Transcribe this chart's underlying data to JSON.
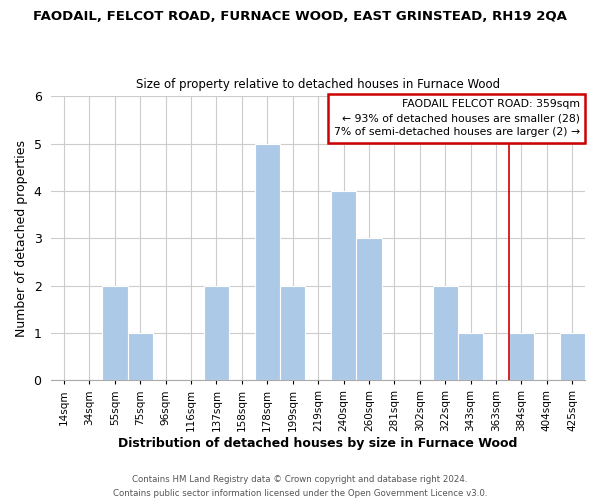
{
  "title": "FAODAIL, FELCOT ROAD, FURNACE WOOD, EAST GRINSTEAD, RH19 2QA",
  "subtitle": "Size of property relative to detached houses in Furnace Wood",
  "xlabel": "Distribution of detached houses by size in Furnace Wood",
  "ylabel": "Number of detached properties",
  "bin_labels": [
    "14sqm",
    "34sqm",
    "55sqm",
    "75sqm",
    "96sqm",
    "116sqm",
    "137sqm",
    "158sqm",
    "178sqm",
    "199sqm",
    "219sqm",
    "240sqm",
    "260sqm",
    "281sqm",
    "302sqm",
    "322sqm",
    "343sqm",
    "363sqm",
    "384sqm",
    "404sqm",
    "425sqm"
  ],
  "bar_heights": [
    0,
    0,
    2,
    1,
    0,
    0,
    2,
    0,
    5,
    2,
    0,
    4,
    3,
    0,
    0,
    2,
    1,
    0,
    1,
    0,
    1
  ],
  "bar_color": "#adc9e8",
  "bar_edge_color": "#adc9e8",
  "ylim": [
    0,
    6
  ],
  "yticks": [
    0,
    1,
    2,
    3,
    4,
    5,
    6
  ],
  "reference_line_x_label": "363sqm",
  "reference_line_color": "#cc0000",
  "legend_title": "FAODAIL FELCOT ROAD: 359sqm",
  "legend_line1": "← 93% of detached houses are smaller (28)",
  "legend_line2": "7% of semi-detached houses are larger (2) →",
  "legend_box_color": "#cc0000",
  "footer_line1": "Contains HM Land Registry data © Crown copyright and database right 2024.",
  "footer_line2": "Contains public sector information licensed under the Open Government Licence v3.0.",
  "background_color": "#ffffff",
  "grid_color": "#cccccc"
}
